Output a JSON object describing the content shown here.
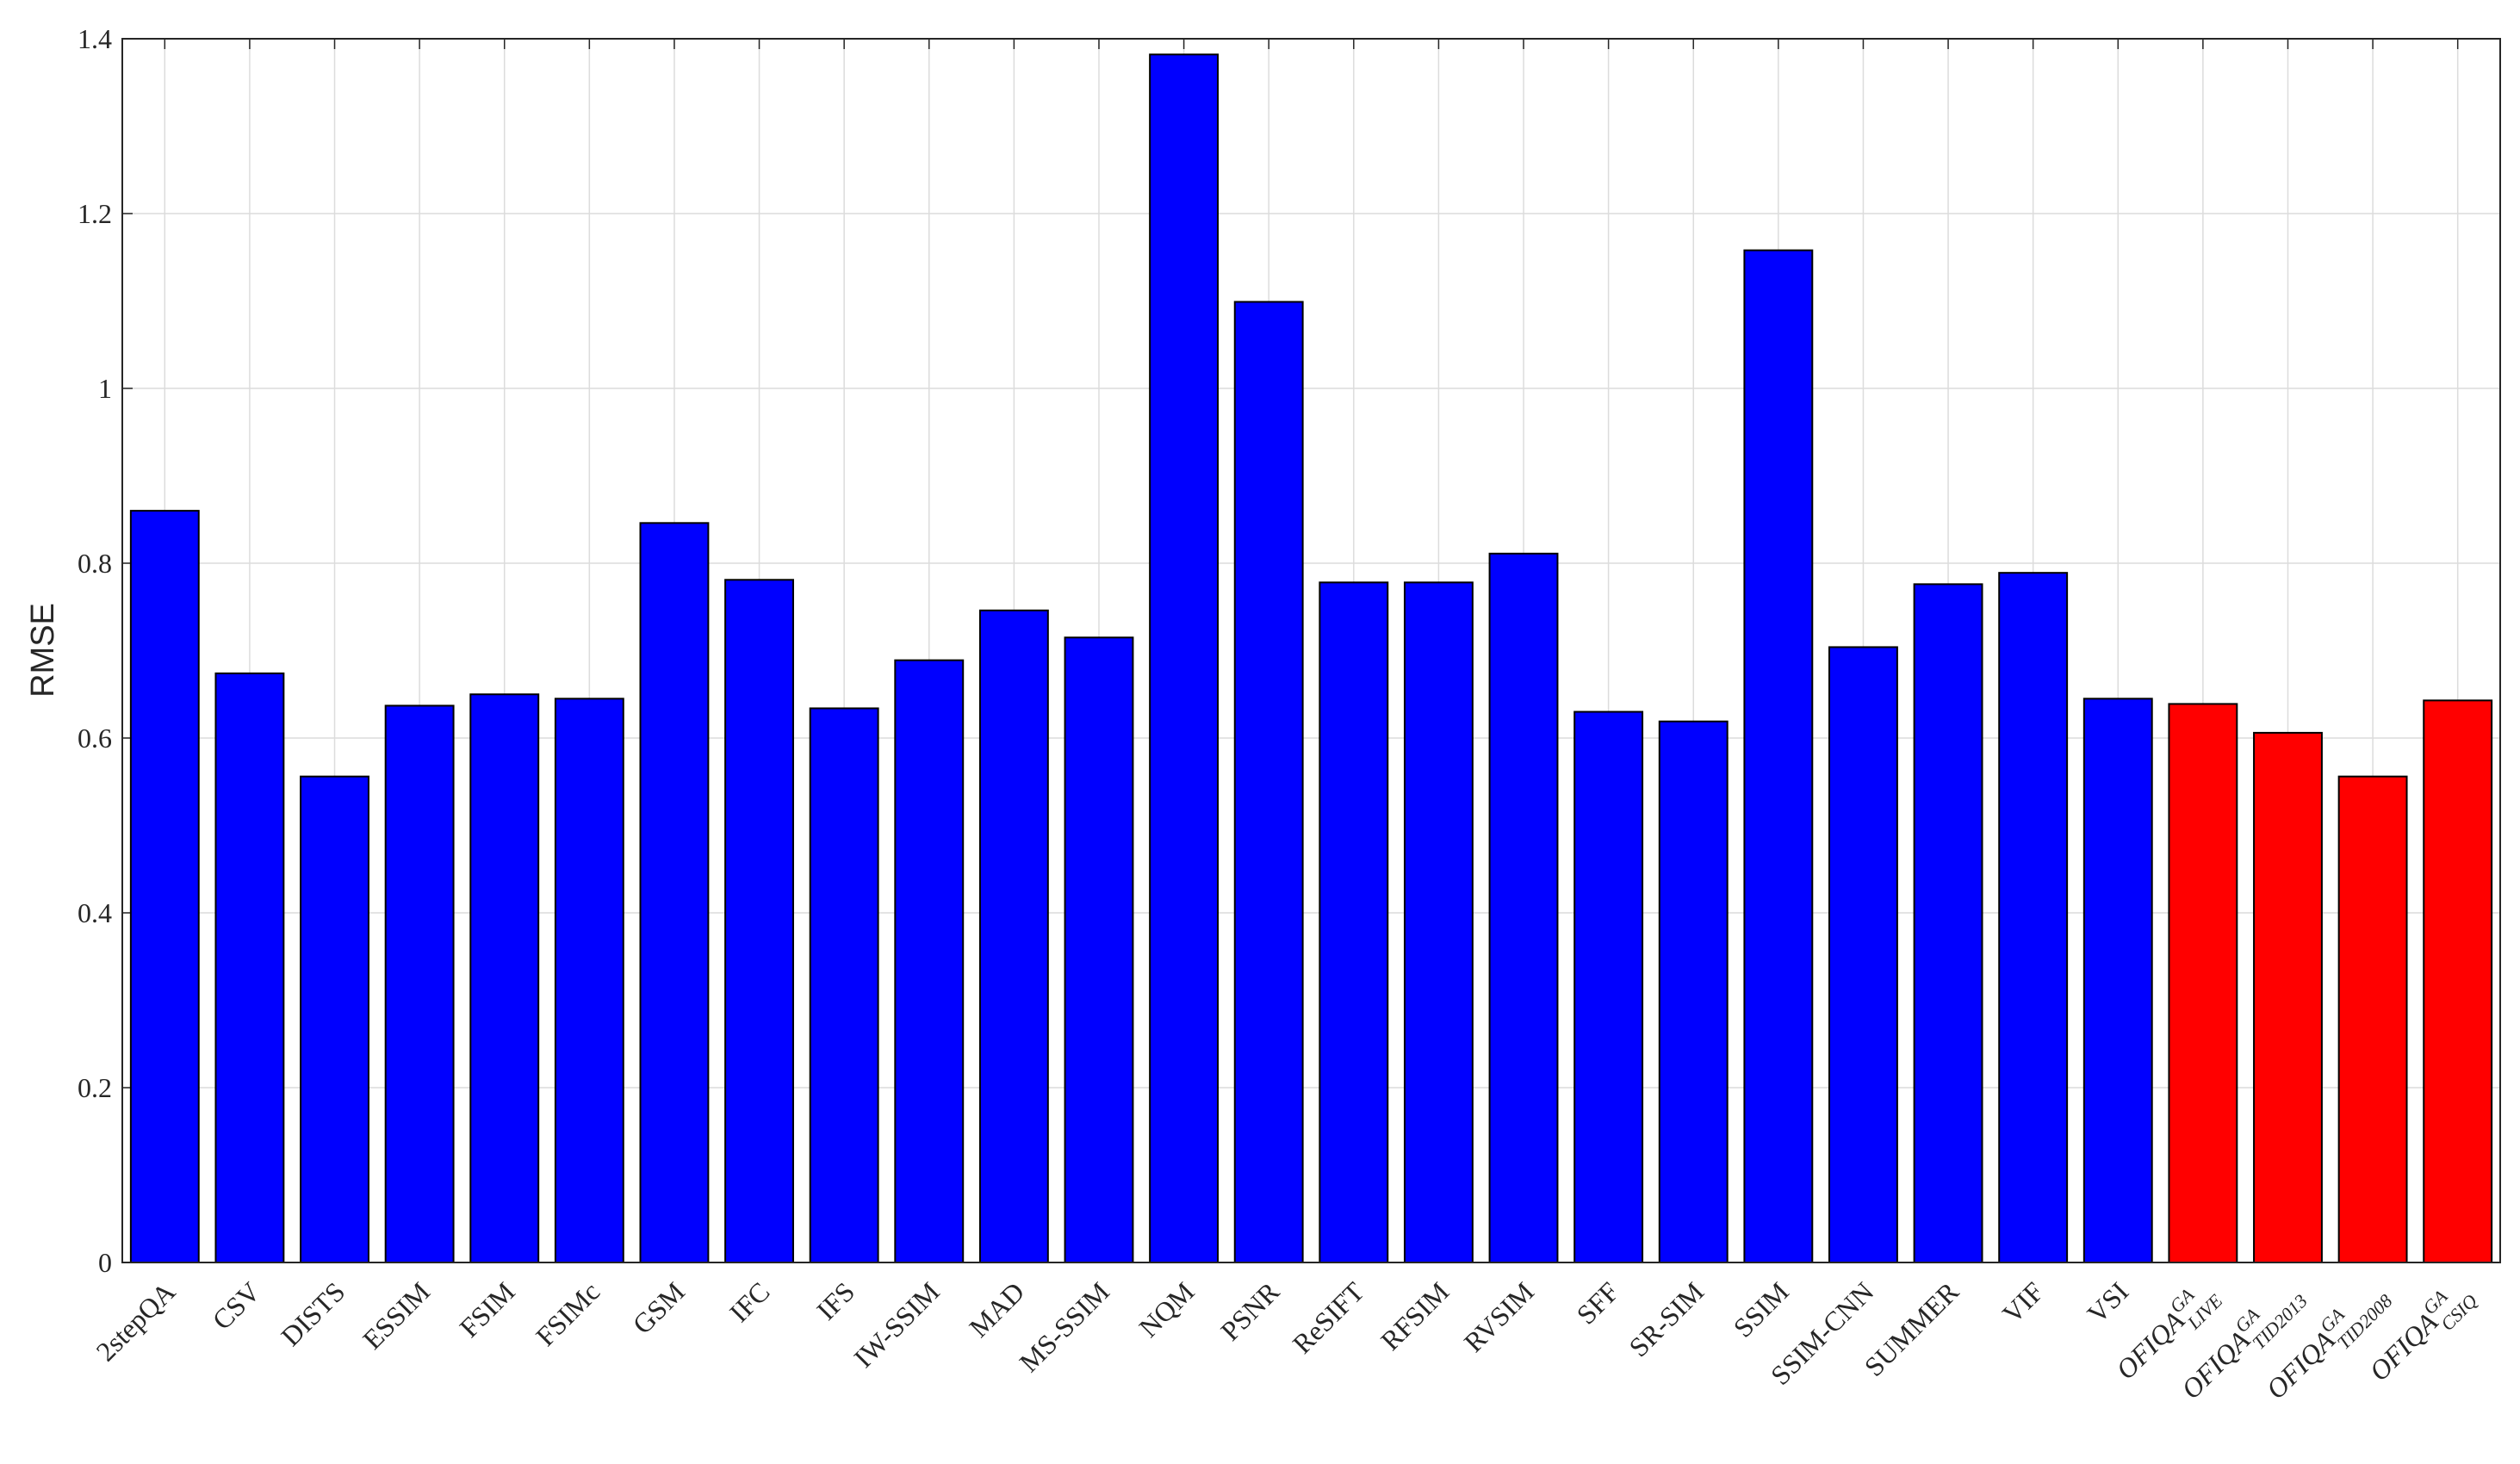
{
  "chart_data": {
    "type": "bar",
    "y_label": "RMSE",
    "categories": [
      "2stepQA",
      "CSV",
      "DISTS",
      "ESSIM",
      "FSIM",
      "FSIMc",
      "GSM",
      "IFC",
      "IFS",
      "IW-SSIM",
      "MAD",
      "MS-SSIM",
      "NQM",
      "PSNR",
      "ReSIFT",
      "RFSIM",
      "RVSIM",
      "SFF",
      "SR-SIM",
      "SSIM",
      "SSIM-CNN",
      "SUMMER",
      "VIF",
      "VSI",
      {
        "base": "OFIQA",
        "sup": "GA",
        "sub": "LIVE"
      },
      {
        "base": "OFIQA",
        "sup": "GA",
        "sub": "TID2013"
      },
      {
        "base": "OFIQA",
        "sup": "GA",
        "sub": "TID2008"
      },
      {
        "base": "OFIQA",
        "sup": "GA",
        "sub": "CSIQ"
      }
    ],
    "values": [
      0.86,
      0.674,
      0.556,
      0.637,
      0.65,
      0.645,
      0.846,
      0.781,
      0.634,
      0.689,
      0.746,
      0.715,
      1.382,
      1.099,
      0.778,
      0.778,
      0.811,
      0.63,
      0.619,
      1.158,
      0.704,
      0.776,
      0.789,
      0.645,
      0.639,
      0.606,
      0.556,
      0.643
    ],
    "colors": [
      "#0000ff",
      "#0000ff",
      "#0000ff",
      "#0000ff",
      "#0000ff",
      "#0000ff",
      "#0000ff",
      "#0000ff",
      "#0000ff",
      "#0000ff",
      "#0000ff",
      "#0000ff",
      "#0000ff",
      "#0000ff",
      "#0000ff",
      "#0000ff",
      "#0000ff",
      "#0000ff",
      "#0000ff",
      "#0000ff",
      "#0000ff",
      "#0000ff",
      "#0000ff",
      "#0000ff",
      "#ff0000",
      "#ff0000",
      "#ff0000",
      "#ff0000"
    ],
    "ylim": [
      0,
      1.4
    ],
    "yticks": [
      0,
      0.2,
      0.4,
      0.6,
      0.8,
      1,
      1.2,
      1.4
    ],
    "grid": true
  }
}
